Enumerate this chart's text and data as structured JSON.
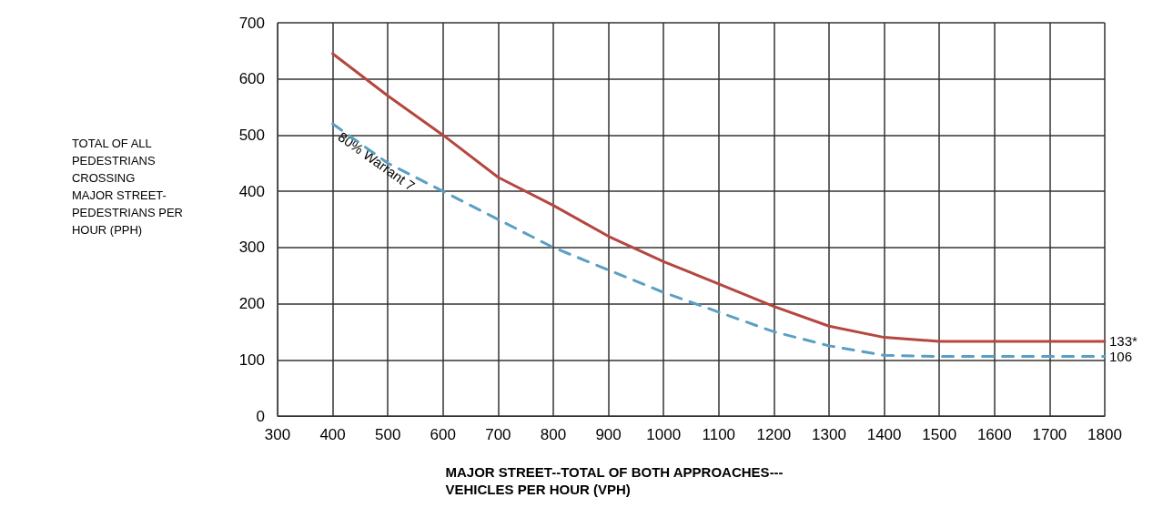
{
  "chart_data": {
    "type": "line",
    "xlabel": "MAJOR STREET--TOTAL OF BOTH APPROACHES---\nVEHICLES PER HOUR (VPH)",
    "ylabel": "TOTAL OF ALL\nPEDESTRIANS\nCROSSING\nMAJOR STREET-\nPEDESTRIANS PER\nHOUR (PPH)",
    "x": [
      400,
      500,
      600,
      700,
      800,
      900,
      1000,
      1100,
      1200,
      1300,
      1400,
      1500,
      1600,
      1700,
      1800
    ],
    "series": [
      {
        "color": "#b5473f",
        "line_style": "solid",
        "values": [
          645,
          570,
          500,
          425,
          375,
          320,
          275,
          235,
          195,
          160,
          140,
          133,
          133,
          133,
          133
        ],
        "value_labels": [
          null,
          null,
          null,
          null,
          null,
          null,
          null,
          null,
          null,
          null,
          null,
          null,
          null,
          null,
          "133*"
        ]
      },
      {
        "color": "#5a9fc4",
        "line_style": "dashed",
        "values": [
          520,
          450,
          400,
          350,
          300,
          260,
          220,
          185,
          150,
          125,
          108,
          106,
          106,
          106,
          106
        ],
        "value_labels": [
          null,
          null,
          null,
          null,
          null,
          null,
          null,
          null,
          null,
          null,
          null,
          null,
          null,
          null,
          "106"
        ]
      }
    ],
    "annotations": [
      "80% Warrant 7"
    ],
    "xlim": [
      300,
      1800
    ],
    "xticks": [
      300,
      400,
      500,
      600,
      700,
      800,
      900,
      1000,
      1100,
      1200,
      1300,
      1400,
      1500,
      1600,
      1700,
      1800
    ],
    "ylim": [
      0,
      700
    ],
    "yticks": [
      0,
      100,
      200,
      300,
      400,
      500,
      600,
      700
    ],
    "grid": true,
    "marker": "none"
  }
}
